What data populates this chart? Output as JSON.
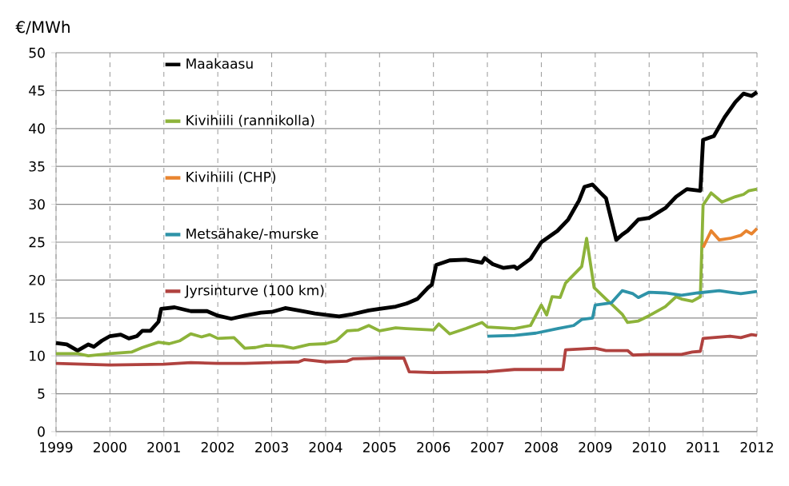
{
  "chart_data": {
    "type": "line",
    "ylabel": "€/MWh",
    "xlim": [
      1999,
      2012
    ],
    "ylim": [
      0,
      50
    ],
    "xticks": [
      1999,
      2000,
      2001,
      2002,
      2003,
      2004,
      2005,
      2006,
      2007,
      2008,
      2009,
      2010,
      2011,
      2012
    ],
    "yticks": [
      0,
      5,
      10,
      15,
      20,
      25,
      30,
      35,
      40,
      45,
      50
    ],
    "grid": true,
    "legend": "top left",
    "marker": "none",
    "line_style": "solid",
    "series": [
      {
        "name": "Maakaasu",
        "color": "#000000",
        "x": [
          1999.0,
          1999.2,
          1999.4,
          1999.6,
          1999.7,
          1999.85,
          2000.0,
          2000.2,
          2000.35,
          2000.5,
          2000.6,
          2000.75,
          2000.9,
          2000.95,
          2001.2,
          2001.5,
          2001.8,
          2002.0,
          2002.25,
          2002.5,
          2002.8,
          2003.0,
          2003.25,
          2003.5,
          2003.8,
          2004.0,
          2004.25,
          2004.5,
          2004.8,
          2005.0,
          2005.3,
          2005.5,
          2005.7,
          2005.9,
          2005.97,
          2006.05,
          2006.3,
          2006.6,
          2006.9,
          2006.95,
          2007.1,
          2007.3,
          2007.5,
          2007.55,
          2007.8,
          2008.0,
          2008.3,
          2008.5,
          2008.7,
          2008.8,
          2008.95,
          2009.1,
          2009.2,
          2009.39,
          2009.5,
          2009.6,
          2009.8,
          2010.0,
          2010.3,
          2010.5,
          2010.7,
          2010.95,
          2011.0,
          2011.2,
          2011.4,
          2011.6,
          2011.75,
          2011.9,
          2012.0
        ],
        "values": [
          11.7,
          11.5,
          10.7,
          11.5,
          11.2,
          12,
          12.6,
          12.8,
          12.3,
          12.6,
          13.3,
          13.3,
          14.5,
          16.2,
          16.4,
          15.9,
          15.9,
          15.3,
          14.9,
          15.3,
          15.7,
          15.8,
          16.3,
          16.0,
          15.6,
          15.4,
          15.2,
          15.5,
          16.0,
          16.2,
          16.5,
          16.9,
          17.5,
          19.0,
          19.4,
          22.0,
          22.6,
          22.7,
          22.3,
          22.9,
          22.1,
          21.6,
          21.8,
          21.5,
          22.8,
          25.0,
          26.5,
          28.0,
          30.5,
          32.3,
          32.6,
          31.5,
          30.8,
          25.3,
          26.0,
          26.5,
          28.0,
          28.2,
          29.5,
          31.0,
          32.0,
          31.8,
          38.5,
          39.0,
          41.5,
          43.5,
          44.6,
          44.3,
          44.8
        ]
      },
      {
        "name": "Kivihiili (rannikolla)",
        "color": "#8db33a",
        "x": [
          1999.0,
          1999.4,
          1999.6,
          2000.0,
          2000.4,
          2000.6,
          2000.9,
          2001.1,
          2001.3,
          2001.5,
          2001.7,
          2001.85,
          2002.0,
          2002.3,
          2002.5,
          2002.7,
          2002.9,
          2003.2,
          2003.4,
          2003.7,
          2004.0,
          2004.2,
          2004.4,
          2004.6,
          2004.8,
          2005.0,
          2005.3,
          2005.5,
          2006.0,
          2006.1,
          2006.3,
          2006.6,
          2006.9,
          2007.0,
          2007.5,
          2007.8,
          2008.0,
          2008.1,
          2008.2,
          2008.35,
          2008.45,
          2008.75,
          2008.84,
          2008.98,
          2009.2,
          2009.5,
          2009.6,
          2009.8,
          2010.0,
          2010.3,
          2010.5,
          2010.6,
          2010.8,
          2010.95,
          2011.0,
          2011.15,
          2011.35,
          2011.6,
          2011.75,
          2011.85,
          2012.0
        ],
        "values": [
          10.3,
          10.3,
          10.0,
          10.3,
          10.5,
          11.1,
          11.8,
          11.6,
          12.0,
          12.9,
          12.5,
          12.8,
          12.3,
          12.4,
          11.0,
          11.1,
          11.4,
          11.3,
          11.0,
          11.5,
          11.6,
          12.0,
          13.3,
          13.4,
          14.0,
          13.3,
          13.7,
          13.6,
          13.4,
          14.2,
          12.9,
          13.6,
          14.4,
          13.8,
          13.6,
          14.0,
          16.7,
          15.4,
          17.8,
          17.7,
          19.6,
          21.8,
          25.5,
          19.0,
          17.5,
          15.5,
          14.4,
          14.6,
          15.3,
          16.5,
          17.8,
          17.5,
          17.2,
          17.8,
          29.9,
          31.5,
          30.3,
          31.0,
          31.3,
          31.8,
          32.0
        ]
      },
      {
        "name": "Kivihiili (CHP)",
        "color": "#e8842f",
        "x": [
          2011.0,
          2011.15,
          2011.3,
          2011.5,
          2011.7,
          2011.8,
          2011.9,
          2012.0
        ],
        "values": [
          24.3,
          26.5,
          25.3,
          25.5,
          25.9,
          26.5,
          26.1,
          26.8
        ]
      },
      {
        "name": "Metsähake/-murske",
        "color": "#2e93a8",
        "x": [
          2007.0,
          2007.5,
          2007.9,
          2008.3,
          2008.6,
          2008.75,
          2008.95,
          2009.0,
          2009.3,
          2009.5,
          2009.7,
          2009.8,
          2010.0,
          2010.3,
          2010.6,
          2010.9,
          2011.3,
          2011.5,
          2011.7,
          2012.0
        ],
        "values": [
          12.6,
          12.7,
          13.0,
          13.6,
          14.0,
          14.8,
          15.0,
          16.7,
          17.0,
          18.6,
          18.2,
          17.7,
          18.4,
          18.3,
          18.0,
          18.3,
          18.6,
          18.4,
          18.2,
          18.5
        ]
      },
      {
        "name": "Jyrsinturve (100 km)",
        "color": "#b0423f",
        "x": [
          1999.0,
          2000.0,
          2001.0,
          2001.5,
          2002.0,
          2002.5,
          2003.0,
          2003.5,
          2003.6,
          2004.0,
          2004.4,
          2004.5,
          2005.0,
          2005.45,
          2005.55,
          2006.0,
          2007.0,
          2007.5,
          2008.4,
          2008.45,
          2009.0,
          2009.2,
          2009.6,
          2009.7,
          2010.0,
          2010.6,
          2010.8,
          2010.95,
          2011.0,
          2011.5,
          2011.7,
          2011.9,
          2012.0
        ],
        "values": [
          9.0,
          8.8,
          8.9,
          9.1,
          9.0,
          9.0,
          9.1,
          9.2,
          9.5,
          9.2,
          9.3,
          9.6,
          9.7,
          9.7,
          7.9,
          7.8,
          7.9,
          8.2,
          8.2,
          10.8,
          11.0,
          10.7,
          10.7,
          10.1,
          10.2,
          10.2,
          10.5,
          10.6,
          12.3,
          12.6,
          12.4,
          12.8,
          12.7
        ]
      }
    ]
  }
}
